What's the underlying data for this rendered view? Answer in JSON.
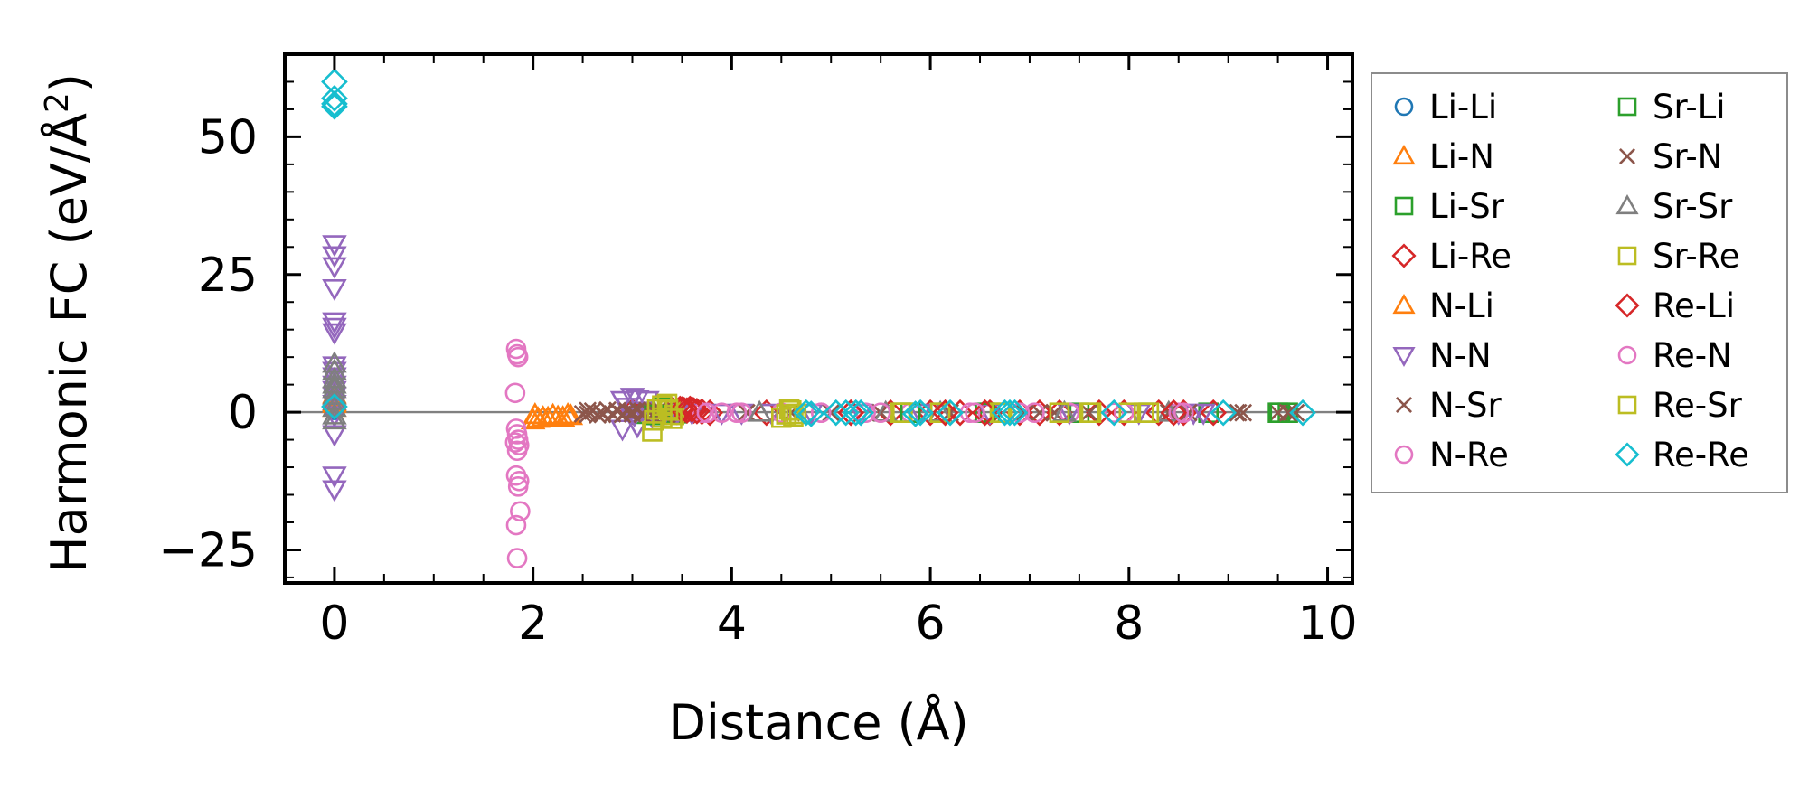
{
  "chart_data": {
    "type": "scatter",
    "title": "",
    "xlabel": "Distance (Å)",
    "ylabel": "Harmonic FC (eV/Å²)",
    "ylabel_parts": {
      "main": "Harmonic FC (eV/Å",
      "sup": "2",
      "close": ")"
    },
    "xlim": [
      -0.5,
      10.25
    ],
    "ylim": [
      -31,
      65
    ],
    "xticks": [
      0,
      2,
      4,
      6,
      8,
      10
    ],
    "xtick_labels": [
      "0",
      "2",
      "4",
      "6",
      "8",
      "10"
    ],
    "yticks": [
      -25,
      0,
      25,
      50
    ],
    "ytick_labels": [
      "−25",
      "0",
      "25",
      "50"
    ],
    "zero_line": 0,
    "legend": {
      "placement": "outside-right",
      "columns": 2
    },
    "series": [
      {
        "name": "Li-Li",
        "marker": "circle",
        "color": "#1f77b4",
        "points": [
          [
            0,
            0.4
          ],
          [
            0,
            1.5
          ],
          [
            0,
            2.5
          ],
          [
            0,
            3.5
          ],
          [
            0,
            0.8
          ],
          [
            0,
            1.2
          ],
          [
            0,
            2.8
          ],
          [
            0,
            2.2
          ]
        ]
      },
      {
        "name": "Li-N",
        "marker": "triangle-up",
        "color": "#ff7f0e",
        "points": [
          [
            0,
            1.5
          ],
          [
            0,
            2.5
          ],
          [
            0,
            3.2
          ],
          [
            0,
            1.8
          ],
          [
            0,
            0.8
          ]
        ]
      },
      {
        "name": "Li-Sr",
        "marker": "square",
        "color": "#2ca02c",
        "points": [
          [
            3.12,
            -0.3
          ],
          [
            3.25,
            -0.5
          ],
          [
            3.35,
            -0.4
          ],
          [
            3.45,
            -0.2
          ],
          [
            5.7,
            -0.1
          ],
          [
            6.1,
            -0.1
          ],
          [
            6.6,
            -0.1
          ],
          [
            7.5,
            -0.1
          ],
          [
            8.2,
            -0.1
          ],
          [
            8.8,
            -0.1
          ],
          [
            9.5,
            -0.1
          ],
          [
            9.6,
            -0.1
          ]
        ]
      },
      {
        "name": "Li-Re",
        "marker": "diamond",
        "color": "#d62728",
        "points": [
          [
            3.0,
            0.1
          ],
          [
            3.4,
            0.4
          ],
          [
            3.48,
            0.6
          ],
          [
            3.52,
            0.4
          ],
          [
            3.58,
            0.6
          ],
          [
            3.62,
            0.3
          ],
          [
            3.7,
            0.1
          ],
          [
            3.78,
            -0.1
          ],
          [
            4.35,
            -0.1
          ],
          [
            5.2,
            -0.1
          ],
          [
            5.6,
            -0.1
          ],
          [
            6.0,
            -0.1
          ],
          [
            6.3,
            -0.1
          ],
          [
            6.6,
            -0.1
          ],
          [
            6.9,
            -0.1
          ],
          [
            7.1,
            -0.1
          ],
          [
            7.3,
            -0.1
          ],
          [
            7.7,
            -0.1
          ],
          [
            7.95,
            -0.1
          ],
          [
            8.3,
            -0.1
          ],
          [
            8.55,
            -0.1
          ],
          [
            8.85,
            -0.1
          ]
        ]
      },
      {
        "name": "N-Li",
        "marker": "triangle-up",
        "color": "#ff7f0e",
        "points": [
          [
            2.0,
            -1.5
          ],
          [
            2.02,
            -0.5
          ],
          [
            2.05,
            -1.2
          ],
          [
            2.1,
            -1.0
          ],
          [
            2.15,
            -1.1
          ],
          [
            2.2,
            -0.6
          ],
          [
            2.25,
            -0.9
          ],
          [
            2.3,
            -1.0
          ],
          [
            2.35,
            -0.5
          ],
          [
            2.38,
            -0.7
          ]
        ]
      },
      {
        "name": "N-N",
        "marker": "triangle-down",
        "color": "#9467bd",
        "points": [
          [
            0,
            30.5
          ],
          [
            0,
            28.5
          ],
          [
            0,
            26.5
          ],
          [
            0,
            22.5
          ],
          [
            0,
            16.5
          ],
          [
            0,
            15.5
          ],
          [
            0,
            14.5
          ],
          [
            0,
            8.5
          ],
          [
            0,
            7.5
          ],
          [
            0,
            6.5
          ],
          [
            0,
            5.0
          ],
          [
            0,
            4.0
          ],
          [
            0,
            3.0
          ],
          [
            0,
            1.5
          ],
          [
            0,
            -0.5
          ],
          [
            0,
            -4.0
          ],
          [
            0,
            -11.5
          ],
          [
            0,
            -14.0
          ],
          [
            2.9,
            2.2
          ],
          [
            2.95,
            1.0
          ],
          [
            3.0,
            2.8
          ],
          [
            3.02,
            -0.5
          ],
          [
            3.05,
            2.4
          ],
          [
            3.1,
            0.3
          ],
          [
            3.15,
            2.2
          ],
          [
            3.18,
            -0.2
          ],
          [
            2.9,
            -3.0
          ],
          [
            3.05,
            -2.5
          ],
          [
            3.2,
            -0.8
          ],
          [
            3.32,
            -0.3
          ],
          [
            3.45,
            -0.1
          ],
          [
            3.6,
            -0.1
          ],
          [
            3.9,
            -0.1
          ],
          [
            4.1,
            -0.1
          ],
          [
            4.4,
            -0.1
          ],
          [
            4.8,
            -0.1
          ],
          [
            5.3,
            -0.1
          ],
          [
            5.9,
            -0.1
          ],
          [
            6.6,
            -0.1
          ],
          [
            7.4,
            -0.1
          ],
          [
            8.1,
            -0.1
          ],
          [
            8.5,
            -0.1
          ],
          [
            8.65,
            -0.1
          ],
          [
            8.75,
            -0.1
          ]
        ]
      },
      {
        "name": "N-Sr",
        "marker": "x",
        "color": "#8c564b",
        "points": [
          [
            2.5,
            -0.3
          ],
          [
            2.55,
            -0.4
          ],
          [
            2.6,
            0.2
          ],
          [
            2.65,
            -0.5
          ],
          [
            2.7,
            -0.2
          ],
          [
            2.75,
            0.4
          ],
          [
            2.8,
            -0.3
          ],
          [
            2.85,
            0.3
          ],
          [
            2.9,
            -0.4
          ],
          [
            2.95,
            0.2
          ],
          [
            3.0,
            -0.3
          ],
          [
            3.05,
            0.4
          ],
          [
            3.1,
            -0.2
          ],
          [
            3.15,
            0.3
          ],
          [
            3.2,
            -0.5
          ],
          [
            3.25,
            0.2
          ],
          [
            3.3,
            -0.2
          ],
          [
            3.35,
            -0.4
          ],
          [
            3.4,
            0.2
          ],
          [
            4.15,
            -0.1
          ],
          [
            4.6,
            -0.1
          ],
          [
            5.0,
            -0.1
          ],
          [
            5.5,
            -0.1
          ],
          [
            6.2,
            -0.1
          ],
          [
            6.95,
            -0.1
          ],
          [
            7.25,
            -0.1
          ],
          [
            7.6,
            -0.1
          ],
          [
            8.4,
            -0.1
          ],
          [
            8.6,
            -0.1
          ],
          [
            9.1,
            -0.1
          ],
          [
            9.15,
            -0.1
          ],
          [
            9.5,
            -0.1
          ],
          [
            9.62,
            -0.1
          ],
          [
            9.68,
            -0.1
          ]
        ]
      },
      {
        "name": "N-Re",
        "marker": "circle",
        "color": "#e377c2",
        "points": [
          [
            3.7,
            -0.1
          ],
          [
            3.9,
            -0.1
          ],
          [
            4.1,
            -0.1
          ],
          [
            4.5,
            -0.1
          ],
          [
            4.9,
            -0.1
          ],
          [
            5.35,
            -0.1
          ],
          [
            5.8,
            -0.1
          ],
          [
            6.4,
            -0.1
          ],
          [
            6.9,
            -0.1
          ],
          [
            7.4,
            -0.1
          ],
          [
            7.95,
            -0.1
          ],
          [
            8.5,
            -0.1
          ]
        ]
      },
      {
        "name": "Sr-Li",
        "marker": "square",
        "color": "#2ca02c",
        "points": [
          [
            3.3,
            0.8
          ],
          [
            3.22,
            -0.5
          ],
          [
            5.8,
            -0.1
          ],
          [
            6.55,
            -0.1
          ],
          [
            9.52,
            -0.1
          ]
        ]
      },
      {
        "name": "Sr-N",
        "marker": "x",
        "color": "#8c564b",
        "points": [
          [
            2.55,
            0.3
          ],
          [
            2.7,
            -0.4
          ],
          [
            2.85,
            0.2
          ],
          [
            3.0,
            0.1
          ],
          [
            3.1,
            -0.4
          ],
          [
            3.2,
            0.3
          ],
          [
            3.3,
            0.1
          ],
          [
            7.1,
            -0.1
          ],
          [
            9.08,
            -0.1
          ],
          [
            9.6,
            -0.1
          ]
        ]
      },
      {
        "name": "Sr-Sr",
        "marker": "triangle-up",
        "color": "#7f7f7f",
        "points": [
          [
            0,
            8.8
          ],
          [
            0,
            7.5
          ],
          [
            0,
            6.0
          ],
          [
            0,
            5.0
          ],
          [
            0,
            4.2
          ],
          [
            0,
            3.0
          ],
          [
            0,
            2.0
          ],
          [
            0,
            0.8
          ],
          [
            0,
            -0.6
          ],
          [
            0,
            -1.5
          ],
          [
            4.28,
            -0.1
          ],
          [
            5.55,
            -0.1
          ],
          [
            6.1,
            -0.1
          ],
          [
            7.35,
            -0.1
          ],
          [
            8.4,
            -0.1
          ]
        ]
      },
      {
        "name": "Sr-Re",
        "marker": "square",
        "color": "#bcbd22",
        "points": [
          [
            3.2,
            -3.5
          ],
          [
            3.25,
            0.5
          ],
          [
            3.3,
            -1.0
          ],
          [
            3.35,
            1.5
          ],
          [
            3.38,
            0.3
          ],
          [
            3.42,
            -0.5
          ],
          [
            4.55,
            -0.4
          ],
          [
            4.6,
            0.3
          ],
          [
            4.62,
            -0.8
          ],
          [
            5.7,
            -0.1
          ],
          [
            6.1,
            -0.1
          ],
          [
            6.7,
            -0.1
          ],
          [
            7.3,
            -0.1
          ],
          [
            7.6,
            -0.1
          ],
          [
            8.0,
            -0.1
          ],
          [
            8.2,
            -0.1
          ]
        ]
      },
      {
        "name": "Re-Li",
        "marker": "diamond",
        "color": "#d62728",
        "points": [
          [
            3.5,
            0.5
          ],
          [
            3.55,
            0.3
          ],
          [
            3.6,
            0.5
          ],
          [
            3.65,
            0.2
          ],
          [
            5.2,
            -0.1
          ],
          [
            6.15,
            -0.1
          ],
          [
            6.55,
            -0.1
          ],
          [
            8.45,
            -0.1
          ]
        ]
      },
      {
        "name": "Re-N",
        "marker": "circle",
        "color": "#e377c2",
        "points": [
          [
            1.83,
            11.5
          ],
          [
            1.84,
            10.5
          ],
          [
            1.85,
            10.0
          ],
          [
            1.82,
            3.5
          ],
          [
            1.83,
            -3.0
          ],
          [
            1.84,
            -4.0
          ],
          [
            1.85,
            -5.0
          ],
          [
            1.82,
            -5.5
          ],
          [
            1.86,
            -6.0
          ],
          [
            1.84,
            -7.0
          ],
          [
            1.83,
            -11.5
          ],
          [
            1.86,
            -12.5
          ],
          [
            1.85,
            -13.5
          ],
          [
            1.87,
            -18.0
          ],
          [
            1.83,
            -20.5
          ],
          [
            1.84,
            -26.5
          ],
          [
            3.75,
            -0.1
          ],
          [
            4.05,
            -0.1
          ],
          [
            4.9,
            -0.1
          ],
          [
            5.5,
            -0.1
          ],
          [
            6.45,
            -0.1
          ],
          [
            7.05,
            -0.1
          ],
          [
            7.85,
            -0.1
          ],
          [
            8.55,
            -0.1
          ]
        ]
      },
      {
        "name": "Re-Sr",
        "marker": "square",
        "color": "#bcbd22",
        "points": [
          [
            3.22,
            -1.5
          ],
          [
            3.3,
            1.2
          ],
          [
            3.36,
            0.6
          ],
          [
            3.4,
            -1.2
          ],
          [
            4.5,
            -1.0
          ],
          [
            4.58,
            0.5
          ],
          [
            4.65,
            -0.3
          ],
          [
            5.72,
            -0.1
          ],
          [
            6.72,
            -0.1
          ],
          [
            7.62,
            -0.1
          ],
          [
            8.15,
            -0.1
          ]
        ]
      },
      {
        "name": "Re-Re",
        "marker": "diamond",
        "color": "#17becf",
        "points": [
          [
            0,
            60.0
          ],
          [
            0,
            57.0
          ],
          [
            0,
            56.0
          ],
          [
            0,
            55.5
          ],
          [
            0,
            1.0
          ],
          [
            4.75,
            -0.1
          ],
          [
            4.8,
            -0.3
          ],
          [
            5.05,
            -0.1
          ],
          [
            5.15,
            -0.1
          ],
          [
            5.25,
            -0.1
          ],
          [
            5.3,
            -0.1
          ],
          [
            5.85,
            -0.3
          ],
          [
            5.9,
            -0.1
          ],
          [
            6.2,
            -0.1
          ],
          [
            6.75,
            -0.1
          ],
          [
            6.8,
            -0.1
          ],
          [
            6.85,
            -0.1
          ],
          [
            7.85,
            -0.1
          ],
          [
            8.95,
            -0.1
          ],
          [
            9.75,
            -0.1
          ]
        ]
      }
    ]
  }
}
